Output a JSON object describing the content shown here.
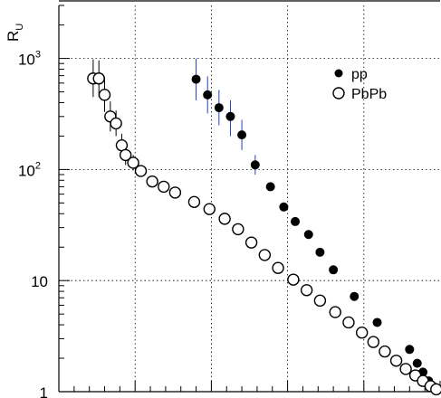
{
  "chart_data": {
    "type": "scatter",
    "title": "",
    "xlabel": "",
    "ylabel": "R",
    "ylabel_sub": "U",
    "yscale": "log",
    "ylim": [
      1,
      3000
    ],
    "xlim": [
      0,
      100
    ],
    "grid": true,
    "legend_position": "top-right",
    "y_ticks": [
      {
        "value": 1,
        "base": "1",
        "exp": ""
      },
      {
        "value": 10,
        "base": "10",
        "exp": ""
      },
      {
        "value": 100,
        "base": "10",
        "exp": "2"
      },
      {
        "value": 1000,
        "base": "10",
        "exp": "3"
      }
    ],
    "x_grid": [
      20,
      40,
      60,
      80
    ],
    "series": [
      {
        "name": "pp",
        "marker": "filled-circle",
        "color": "#000000",
        "errbar_color": "#1f3fbf",
        "points": [
          {
            "x": 36.0,
            "y": 650,
            "lo": 420,
            "hi": 1000
          },
          {
            "x": 39.0,
            "y": 470,
            "lo": 320,
            "hi": 690
          },
          {
            "x": 42.0,
            "y": 360,
            "lo": 250,
            "hi": 520
          },
          {
            "x": 45.0,
            "y": 300,
            "lo": 200,
            "hi": 420
          },
          {
            "x": 48.0,
            "y": 205,
            "lo": 150,
            "hi": 280
          },
          {
            "x": 51.5,
            "y": 110,
            "lo": 90,
            "hi": 135
          },
          {
            "x": 55.5,
            "y": 70
          },
          {
            "x": 59.0,
            "y": 46
          },
          {
            "x": 62.0,
            "y": 34
          },
          {
            "x": 65.5,
            "y": 26
          },
          {
            "x": 68.5,
            "y": 18
          },
          {
            "x": 72.0,
            "y": 12.5
          },
          {
            "x": 77.5,
            "y": 7.2
          },
          {
            "x": 83.5,
            "y": 4.2
          },
          {
            "x": 92.0,
            "y": 2.4
          },
          {
            "x": 94.0,
            "y": 1.8
          },
          {
            "x": 95.5,
            "y": 1.5
          },
          {
            "x": 97.0,
            "y": 1.25
          },
          {
            "x": 98.5,
            "y": 1.1
          }
        ]
      },
      {
        "name": "PbPb",
        "marker": "open-circle",
        "color": "#000000",
        "errbar_color": "#000000",
        "points": [
          {
            "x": 9.0,
            "y": 660,
            "lo": 450,
            "hi": 980
          },
          {
            "x": 10.5,
            "y": 660,
            "lo": 450,
            "hi": 960
          },
          {
            "x": 12.0,
            "y": 470,
            "lo": 330,
            "hi": 680
          },
          {
            "x": 13.5,
            "y": 300,
            "lo": 220,
            "hi": 410
          },
          {
            "x": 15.0,
            "y": 260,
            "lo": 200,
            "hi": 340
          },
          {
            "x": 16.5,
            "y": 165,
            "lo": 130,
            "hi": 210
          },
          {
            "x": 17.5,
            "y": 135,
            "lo": 110,
            "hi": 165
          },
          {
            "x": 19.5,
            "y": 115,
            "lo": 98,
            "hi": 135
          },
          {
            "x": 21.5,
            "y": 97
          },
          {
            "x": 24.5,
            "y": 78
          },
          {
            "x": 27.5,
            "y": 70
          },
          {
            "x": 30.5,
            "y": 62
          },
          {
            "x": 35.5,
            "y": 51
          },
          {
            "x": 39.5,
            "y": 44
          },
          {
            "x": 43.5,
            "y": 36
          },
          {
            "x": 47.0,
            "y": 29
          },
          {
            "x": 50.5,
            "y": 22
          },
          {
            "x": 54.0,
            "y": 17
          },
          {
            "x": 57.5,
            "y": 13
          },
          {
            "x": 61.5,
            "y": 10.2
          },
          {
            "x": 65.0,
            "y": 8.2
          },
          {
            "x": 68.5,
            "y": 6.6
          },
          {
            "x": 72.5,
            "y": 5.2
          },
          {
            "x": 76.0,
            "y": 4.2
          },
          {
            "x": 79.5,
            "y": 3.4
          },
          {
            "x": 82.5,
            "y": 2.8
          },
          {
            "x": 85.5,
            "y": 2.3
          },
          {
            "x": 88.5,
            "y": 1.9
          },
          {
            "x": 91.0,
            "y": 1.6
          },
          {
            "x": 93.5,
            "y": 1.4
          },
          {
            "x": 95.5,
            "y": 1.25
          },
          {
            "x": 97.5,
            "y": 1.12
          },
          {
            "x": 99.0,
            "y": 1.05
          }
        ]
      }
    ]
  }
}
